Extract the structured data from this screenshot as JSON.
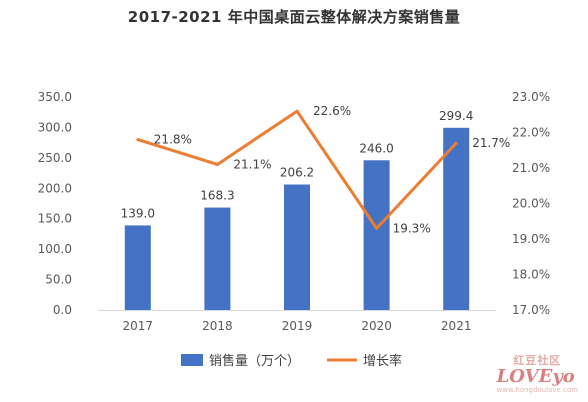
{
  "chart_data": {
    "type": "bar",
    "title": "2017-2021 年中国桌面云整体解决方案销售量",
    "categories": [
      "2017",
      "2018",
      "2019",
      "2020",
      "2021"
    ],
    "series": [
      {
        "name": "销售量（万个）",
        "type": "bar",
        "axis": "left",
        "values": [
          139.0,
          168.3,
          206.2,
          246.0,
          299.4
        ],
        "labels": [
          "139.0",
          "168.3",
          "206.2",
          "246.0",
          "299.4"
        ]
      },
      {
        "name": "增长率",
        "type": "line",
        "axis": "right",
        "values": [
          21.8,
          21.1,
          22.6,
          19.3,
          21.7
        ],
        "labels": [
          "21.8%",
          "21.1%",
          "22.6%",
          "19.3%",
          "21.7%"
        ]
      }
    ],
    "yleft": {
      "ylim": [
        0,
        350
      ],
      "ticks": [
        "0.0",
        "50.0",
        "100.0",
        "150.0",
        "200.0",
        "250.0",
        "300.0",
        "350.0"
      ]
    },
    "yright": {
      "ylim": [
        17.0,
        23.0
      ],
      "ticks": [
        "17.0%",
        "18.0%",
        "19.0%",
        "20.0%",
        "21.0%",
        "22.0%",
        "23.0%"
      ]
    },
    "colors": {
      "bar": "#4472C4",
      "line": "#ED7D31",
      "axis": "#D9D9D9"
    },
    "legend": "bottom",
    "grid": false
  },
  "watermark": {
    "top": "红豆社区",
    "bottom": "LOVEyo",
    "url": "www.hongdoulove.com"
  }
}
